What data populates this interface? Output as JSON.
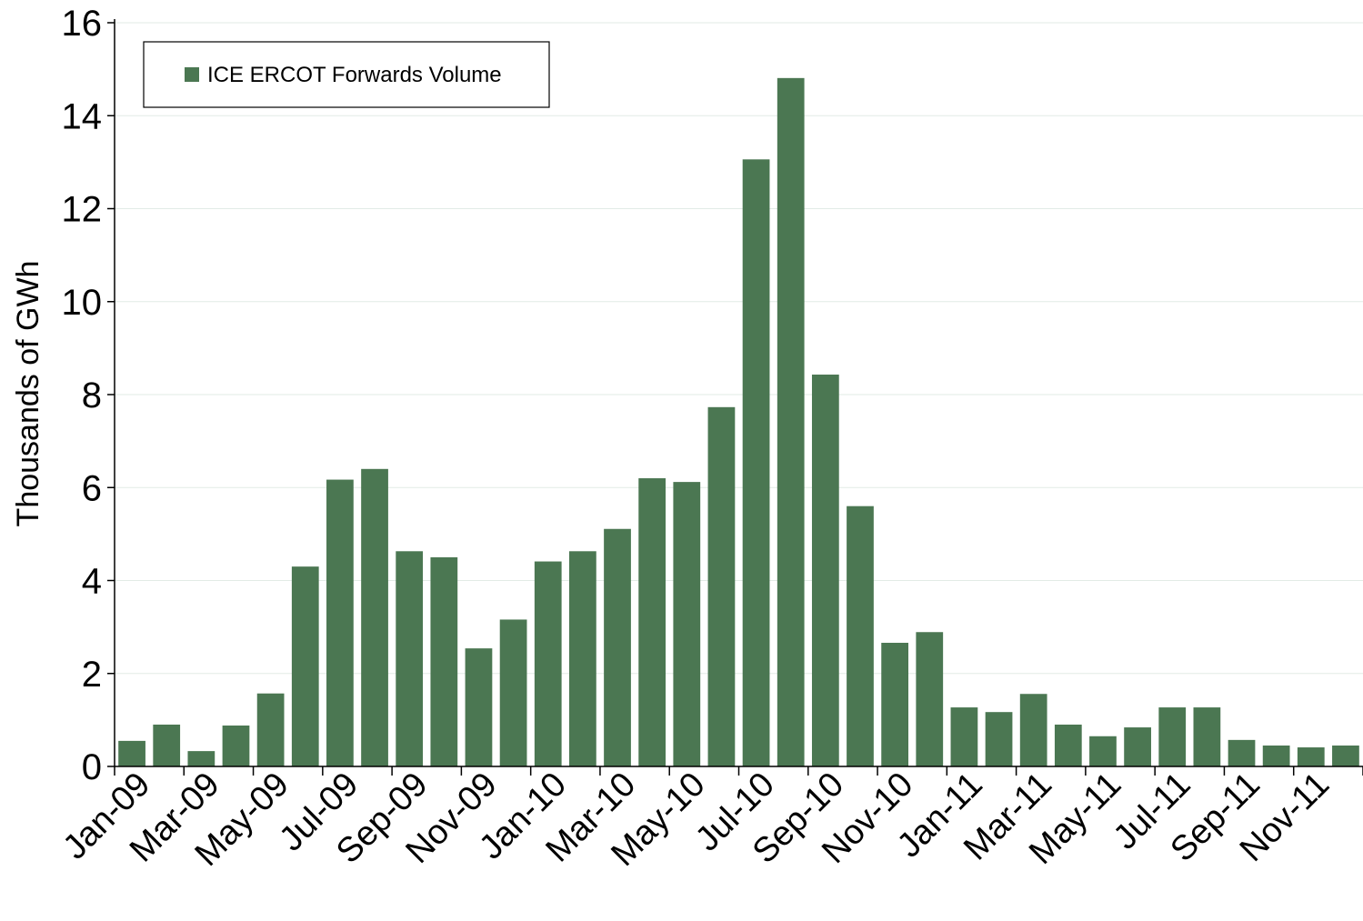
{
  "chart_data": {
    "type": "bar",
    "ylabel": "Thousands of GWh",
    "ylim": [
      0,
      16
    ],
    "yticks": [
      0,
      2,
      4,
      6,
      8,
      10,
      12,
      14,
      16
    ],
    "grid": true,
    "legend_position": "top-left",
    "bar_color": "#4b7752",
    "categories": [
      "Jan-09",
      "Feb-09",
      "Mar-09",
      "Apr-09",
      "May-09",
      "Jun-09",
      "Jul-09",
      "Aug-09",
      "Sep-09",
      "Oct-09",
      "Nov-09",
      "Dec-09",
      "Jan-10",
      "Feb-10",
      "Mar-10",
      "Apr-10",
      "May-10",
      "Jun-10",
      "Jul-10",
      "Aug-10",
      "Sep-10",
      "Oct-10",
      "Nov-10",
      "Dec-10",
      "Jan-11",
      "Feb-11",
      "Mar-11",
      "Apr-11",
      "May-11",
      "Jun-11",
      "Jul-11",
      "Aug-11",
      "Sep-11",
      "Oct-11",
      "Nov-11",
      "Dec-11"
    ],
    "x_tick_labels": [
      "Jan-09",
      "Mar-09",
      "May-09",
      "Jul-09",
      "Sep-09",
      "Nov-09",
      "Jan-10",
      "Mar-10",
      "May-10",
      "Jul-10",
      "Sep-10",
      "Nov-10",
      "Jan-11",
      "Mar-11",
      "May-11",
      "Jul-11",
      "Sep-11",
      "Nov-11"
    ],
    "series": [
      {
        "name": "ICE ERCOT Forwards Volume",
        "values": [
          0.55,
          0.9,
          0.33,
          0.88,
          1.57,
          4.3,
          6.17,
          6.4,
          4.63,
          4.5,
          2.54,
          3.16,
          4.41,
          4.63,
          5.11,
          6.2,
          6.12,
          7.73,
          13.06,
          14.81,
          8.43,
          5.6,
          2.66,
          2.89,
          1.27,
          1.17,
          1.56,
          0.9,
          0.65,
          0.84,
          1.27,
          1.27,
          0.57,
          0.45,
          0.41,
          0.45
        ]
      }
    ]
  }
}
